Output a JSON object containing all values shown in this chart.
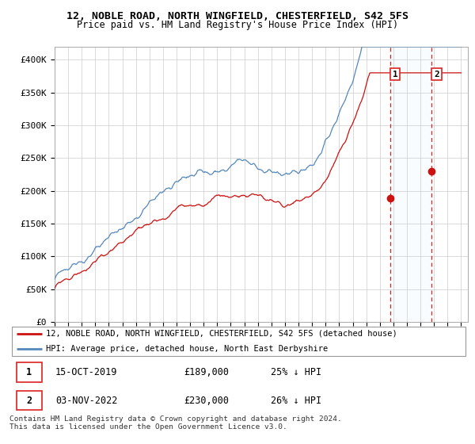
{
  "title": "12, NOBLE ROAD, NORTH WINGFIELD, CHESTERFIELD, S42 5FS",
  "subtitle": "Price paid vs. HM Land Registry's House Price Index (HPI)",
  "ylabel_ticks": [
    "£0",
    "£50K",
    "£100K",
    "£150K",
    "£200K",
    "£250K",
    "£300K",
    "£350K",
    "£400K"
  ],
  "ytick_values": [
    0,
    50000,
    100000,
    150000,
    200000,
    250000,
    300000,
    350000,
    400000
  ],
  "ylim": [
    0,
    420000
  ],
  "xlim_start": 1995.0,
  "xlim_end": 2025.5,
  "sale1_year": 2019.79,
  "sale2_year": 2022.84,
  "sale1_price": 189000,
  "sale2_price": 230000,
  "legend_line1": "12, NOBLE ROAD, NORTH WINGFIELD, CHESTERFIELD, S42 5FS (detached house)",
  "legend_line2": "HPI: Average price, detached house, North East Derbyshire",
  "ann1_date": "15-OCT-2019",
  "ann1_price": "£189,000",
  "ann1_pct": "25% ↓ HPI",
  "ann2_date": "03-NOV-2022",
  "ann2_price": "£230,000",
  "ann2_pct": "26% ↓ HPI",
  "footer": "Contains HM Land Registry data © Crown copyright and database right 2024.\nThis data is licensed under the Open Government Licence v3.0.",
  "line_color_hpi": "#5588bb",
  "line_color_price": "#cc1111",
  "vline_color": "#dd2222",
  "shade_color": "#ddeeff",
  "background_color": "#ffffff",
  "grid_color": "#cccccc",
  "num_points": 720
}
